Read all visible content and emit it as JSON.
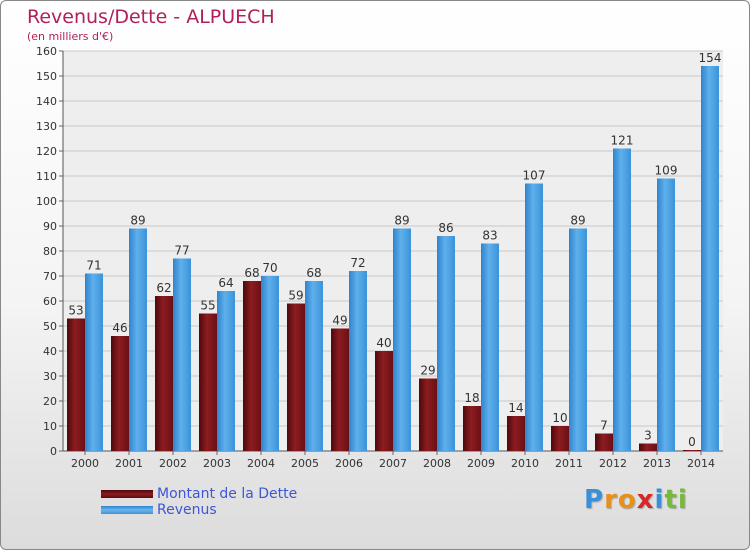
{
  "header": {
    "title": "Revenus/Dette - ALPUECH",
    "subtitle": "(en milliers d'€)"
  },
  "chart_data": {
    "type": "bar",
    "title": "Revenus/Dette - ALPUECH",
    "subtitle": "(en milliers d'€)",
    "xlabel": "",
    "ylabel": "",
    "ylim": [
      0,
      160
    ],
    "yticks": [
      0,
      10,
      20,
      30,
      40,
      50,
      60,
      70,
      80,
      90,
      100,
      110,
      120,
      130,
      140,
      150,
      160
    ],
    "grid": true,
    "legend_position": "bottom-left",
    "categories": [
      "2000",
      "2001",
      "2002",
      "2003",
      "2004",
      "2005",
      "2006",
      "2007",
      "2008",
      "2009",
      "2010",
      "2011",
      "2012",
      "2013",
      "2014"
    ],
    "series": [
      {
        "name": "Montant de la Dette",
        "color": "#7a1418",
        "values": [
          53,
          46,
          62,
          55,
          68,
          59,
          49,
          40,
          29,
          18,
          14,
          10,
          7,
          3,
          0
        ]
      },
      {
        "name": "Revenus",
        "color": "#4a9ee0",
        "values": [
          71,
          89,
          77,
          64,
          70,
          68,
          72,
          89,
          86,
          83,
          107,
          89,
          121,
          109,
          154
        ]
      }
    ]
  },
  "legend": {
    "items": [
      {
        "label": "Montant de la Dette",
        "color": "#7a1418"
      },
      {
        "label": "Revenus",
        "color": "#4a9ee0"
      }
    ]
  },
  "logo": {
    "letters": [
      {
        "ch": "P",
        "color": "#3a8fd9"
      },
      {
        "ch": "r",
        "color": "#e8901c"
      },
      {
        "ch": "o",
        "color": "#e8901c"
      },
      {
        "ch": "x",
        "color": "#d62828"
      },
      {
        "ch": "i",
        "color": "#3a8fd9"
      },
      {
        "ch": "t",
        "color": "#78b83c"
      },
      {
        "ch": "i",
        "color": "#78b83c"
      }
    ]
  }
}
